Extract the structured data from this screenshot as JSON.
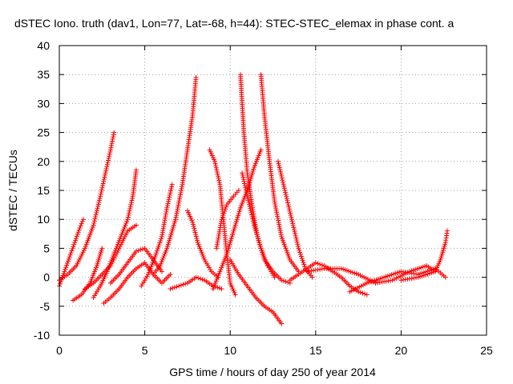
{
  "chart_data": {
    "type": "scatter",
    "title": "dSTEC Iono. truth (dav1, Lon=77, Lat=-68, h=44): STEC-STEC_elemax in phase cont. a",
    "xlabel": "GPS time / hours of day 250 of year 2014",
    "ylabel": "dSTEC  / TECUs",
    "xlim": [
      0,
      25
    ],
    "ylim": [
      -10,
      40
    ],
    "xticks": [
      0,
      5,
      10,
      15,
      20,
      25
    ],
    "yticks": [
      -10,
      -5,
      0,
      5,
      10,
      15,
      20,
      25,
      30,
      35,
      40
    ],
    "grid": true,
    "marker": "+",
    "color": "#ff0000",
    "series": [
      {
        "x": [
          0.0,
          0.3,
          0.6,
          0.9,
          1.2,
          1.4
        ],
        "y": [
          -1.5,
          1.0,
          3.5,
          6.0,
          8.5,
          10.0
        ]
      },
      {
        "x": [
          0.0,
          0.5,
          1.0,
          1.5,
          2.0,
          2.4,
          2.7,
          3.0,
          3.2
        ],
        "y": [
          -0.5,
          0.5,
          2.0,
          5.0,
          9.0,
          14.0,
          18.0,
          22.0,
          25.0
        ]
      },
      {
        "x": [
          0.8,
          1.3,
          1.8,
          2.2,
          2.5
        ],
        "y": [
          -4.0,
          -3.0,
          -1.0,
          2.0,
          5.0
        ]
      },
      {
        "x": [
          2.0,
          2.4,
          2.8,
          3.2,
          3.6,
          4.0,
          4.3,
          4.5
        ],
        "y": [
          -3.5,
          -1.5,
          1.0,
          4.0,
          7.0,
          10.0,
          14.0,
          18.5
        ]
      },
      {
        "x": [
          1.5,
          2.0,
          2.5,
          3.0,
          3.5,
          4.0,
          4.5
        ],
        "y": [
          -2.0,
          -1.0,
          0.5,
          2.0,
          5.0,
          8.0,
          9.0
        ]
      },
      {
        "x": [
          2.6,
          3.0,
          3.5,
          4.0,
          4.5,
          5.0,
          5.5,
          6.0,
          6.5
        ],
        "y": [
          -4.5,
          -3.5,
          -2.0,
          0.0,
          1.5,
          2.5,
          0.5,
          -1.0,
          0.5
        ]
      },
      {
        "x": [
          3.0,
          3.5,
          4.0,
          4.5,
          5.0,
          5.5,
          6.0
        ],
        "y": [
          -1.0,
          0.5,
          2.5,
          4.5,
          5.0,
          3.0,
          1.0
        ]
      },
      {
        "x": [
          4.8,
          5.2,
          5.6,
          6.0,
          6.3,
          6.6
        ],
        "y": [
          -1.5,
          0.5,
          3.5,
          7.0,
          12.0,
          16.0
        ]
      },
      {
        "x": [
          5.5,
          5.9,
          6.3,
          6.8,
          7.2,
          7.5,
          7.8,
          8.0
        ],
        "y": [
          0.5,
          2.0,
          5.0,
          10.0,
          16.0,
          22.0,
          28.0,
          34.5
        ]
      },
      {
        "x": [
          6.5,
          7.0,
          7.5,
          8.0,
          8.5,
          9.0,
          9.5
        ],
        "y": [
          -2.0,
          -1.5,
          -1.0,
          0.0,
          -0.5,
          -1.5,
          -2.0
        ]
      },
      {
        "x": [
          7.5,
          7.8,
          8.1,
          8.5,
          8.9,
          9.3
        ],
        "y": [
          11.5,
          9.5,
          6.0,
          3.0,
          1.0,
          0.0
        ]
      },
      {
        "x": [
          8.8,
          9.1,
          9.4,
          9.6,
          9.8,
          10.0,
          10.3
        ],
        "y": [
          22.0,
          20.0,
          16.0,
          10.0,
          4.0,
          -1.0,
          -3.0
        ]
      },
      {
        "x": [
          9.0,
          9.4,
          9.8,
          10.2,
          10.6,
          11.0,
          11.4,
          11.8
        ],
        "y": [
          -2.0,
          1.0,
          4.0,
          8.0,
          12.0,
          15.0,
          19.0,
          22.0
        ]
      },
      {
        "x": [
          9.2,
          9.5,
          9.8,
          10.2,
          10.5
        ],
        "y": [
          5.0,
          10.0,
          12.5,
          14.0,
          15.0
        ]
      },
      {
        "x": [
          10.0,
          10.5,
          11.0,
          11.5,
          12.0,
          12.5,
          13.0
        ],
        "y": [
          3.0,
          0.5,
          -1.5,
          -3.5,
          -5.0,
          -6.0,
          -8.0
        ]
      },
      {
        "x": [
          10.6,
          10.8,
          11.0,
          11.3,
          11.6,
          12.0,
          12.5,
          13.0,
          13.5
        ],
        "y": [
          35.0,
          25.0,
          18.0,
          12.0,
          7.0,
          3.0,
          1.0,
          -0.5,
          -1.0
        ]
      },
      {
        "x": [
          10.7,
          11.0,
          11.4,
          11.8,
          12.2,
          12.6
        ],
        "y": [
          18.0,
          14.0,
          9.0,
          5.0,
          2.0,
          0.0
        ]
      },
      {
        "x": [
          11.8,
          12.0,
          12.3,
          12.6,
          13.0,
          13.5,
          14.0
        ],
        "y": [
          35.0,
          28.0,
          20.0,
          13.0,
          7.0,
          3.0,
          1.0
        ]
      },
      {
        "x": [
          12.8,
          13.2,
          13.6,
          14.0,
          14.4,
          14.8
        ],
        "y": [
          20.0,
          15.0,
          10.0,
          5.0,
          1.5,
          0.0
        ]
      },
      {
        "x": [
          13.5,
          14.0,
          14.5,
          15.0,
          15.5,
          16.0,
          16.5,
          17.0,
          17.5,
          18.0
        ],
        "y": [
          -0.5,
          0.5,
          1.5,
          2.5,
          2.0,
          1.0,
          0.0,
          -1.5,
          -2.5,
          -3.0
        ]
      },
      {
        "x": [
          14.5,
          15.5,
          16.5,
          17.5,
          18.5,
          19.5,
          20.5,
          21.5,
          22.0
        ],
        "y": [
          1.0,
          1.5,
          1.5,
          0.5,
          -1.0,
          -0.5,
          1.0,
          2.0,
          1.0
        ]
      },
      {
        "x": [
          17.0,
          18.0,
          19.0,
          20.0,
          21.0,
          22.0,
          22.6
        ],
        "y": [
          -2.5,
          -1.0,
          0.0,
          1.0,
          0.5,
          1.5,
          0.0
        ]
      },
      {
        "x": [
          20.0,
          21.0,
          22.0,
          22.3,
          22.6,
          22.7
        ],
        "y": [
          -0.5,
          0.0,
          1.0,
          3.0,
          6.0,
          8.0
        ]
      }
    ]
  }
}
